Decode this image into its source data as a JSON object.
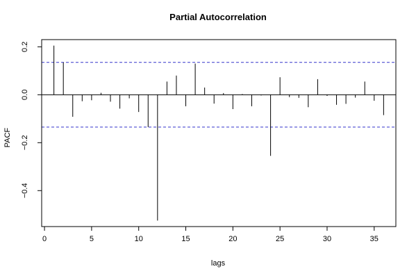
{
  "chart_data": {
    "type": "bar",
    "title": "Partial Autocorrelation",
    "xlabel": "lags",
    "ylabel": "PACF",
    "xlim": [
      -0.3,
      37.3
    ],
    "ylim": [
      -0.55,
      0.23
    ],
    "x_ticks": [
      0,
      5,
      10,
      15,
      20,
      25,
      30,
      35
    ],
    "y_ticks": [
      -0.4,
      -0.2,
      0.0,
      0.2
    ],
    "y_tick_labels": [
      "−0.4",
      "−0.2",
      "0.0",
      "0.2"
    ],
    "confidence_bound": 0.135,
    "colors": {
      "bars": "#000000",
      "confidence": "#3333cc"
    },
    "lags": [
      1,
      2,
      3,
      4,
      5,
      6,
      7,
      8,
      9,
      10,
      11,
      12,
      13,
      14,
      15,
      16,
      17,
      18,
      19,
      20,
      21,
      22,
      23,
      24,
      25,
      26,
      27,
      28,
      29,
      30,
      31,
      32,
      33,
      34,
      35,
      36
    ],
    "values": [
      0.205,
      0.135,
      -0.092,
      -0.027,
      -0.023,
      0.008,
      -0.029,
      -0.058,
      -0.015,
      -0.072,
      -0.135,
      -0.525,
      0.055,
      0.08,
      -0.048,
      0.13,
      0.03,
      -0.037,
      0.007,
      -0.06,
      0.003,
      -0.048,
      -0.003,
      -0.255,
      0.073,
      -0.01,
      -0.013,
      -0.052,
      0.065,
      -0.005,
      -0.042,
      -0.038,
      -0.012,
      0.055,
      -0.025,
      -0.085
    ]
  }
}
